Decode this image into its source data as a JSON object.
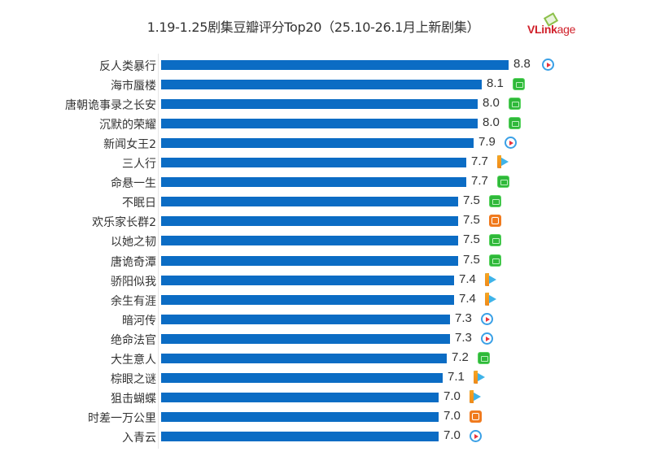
{
  "chart_data": {
    "type": "bar",
    "orientation": "horizontal",
    "title": "1.19-1.25剧集豆瓣评分Top20（25.10-26.1月上新剧集）",
    "xlabel": "",
    "ylabel": "",
    "grid": false,
    "legend": null,
    "categories": [
      "反人类暴行",
      "海市蜃楼",
      "唐朝诡事录之长安",
      "沉默的荣耀",
      "新闻女王2",
      "三人行",
      "命悬一生",
      "不眠日",
      "欢乐家长群2",
      "以她之韧",
      "唐诡奇潭",
      "骄阳似我",
      "余生有涯",
      "暗河传",
      "绝命法官",
      "大生意人",
      "棕眼之谜",
      "狙击蝴蝶",
      "时差一万公里",
      "入青云"
    ],
    "values": [
      8.8,
      8.1,
      8.0,
      8.0,
      7.9,
      7.7,
      7.7,
      7.5,
      7.5,
      7.5,
      7.5,
      7.4,
      7.4,
      7.3,
      7.3,
      7.2,
      7.1,
      7.0,
      7.0,
      7.0
    ],
    "platforms": [
      "youku",
      "iqiyi",
      "iqiyi",
      "iqiyi",
      "youku",
      "tencent",
      "iqiyi",
      "iqiyi",
      "mango",
      "iqiyi",
      "iqiyi",
      "tencent",
      "tencent",
      "youku",
      "youku",
      "iqiyi",
      "tencent",
      "tencent",
      "mango",
      "youku"
    ],
    "bar_color": "#0b6cc4"
  },
  "header": {
    "title": "1.19-1.25剧集豆瓣评分Top20（25.10-26.1月上新剧集）",
    "logo_bold": "VLink",
    "logo_light": "age"
  },
  "rows": [
    {
      "label": "反人类暴行",
      "value": "8.8",
      "platform_icon": "youku-icon"
    },
    {
      "label": "海市蜃楼",
      "value": "8.1",
      "platform_icon": "iqiyi-icon"
    },
    {
      "label": "唐朝诡事录之长安",
      "value": "8.0",
      "platform_icon": "iqiyi-icon"
    },
    {
      "label": "沉默的荣耀",
      "value": "8.0",
      "platform_icon": "iqiyi-icon"
    },
    {
      "label": "新闻女王2",
      "value": "7.9",
      "platform_icon": "youku-icon"
    },
    {
      "label": "三人行",
      "value": "7.7",
      "platform_icon": "tencent-video-icon"
    },
    {
      "label": "命悬一生",
      "value": "7.7",
      "platform_icon": "iqiyi-icon"
    },
    {
      "label": "不眠日",
      "value": "7.5",
      "platform_icon": "iqiyi-icon"
    },
    {
      "label": "欢乐家长群2",
      "value": "7.5",
      "platform_icon": "mango-tv-icon"
    },
    {
      "label": "以她之韧",
      "value": "7.5",
      "platform_icon": "iqiyi-icon"
    },
    {
      "label": "唐诡奇潭",
      "value": "7.5",
      "platform_icon": "iqiyi-icon"
    },
    {
      "label": "骄阳似我",
      "value": "7.4",
      "platform_icon": "tencent-video-icon"
    },
    {
      "label": "余生有涯",
      "value": "7.4",
      "platform_icon": "tencent-video-icon"
    },
    {
      "label": "暗河传",
      "value": "7.3",
      "platform_icon": "youku-icon"
    },
    {
      "label": "绝命法官",
      "value": "7.3",
      "platform_icon": "youku-icon"
    },
    {
      "label": "大生意人",
      "value": "7.2",
      "platform_icon": "iqiyi-icon"
    },
    {
      "label": "棕眼之谜",
      "value": "7.1",
      "platform_icon": "tencent-video-icon"
    },
    {
      "label": "狙击蝴蝶",
      "value": "7.0",
      "platform_icon": "tencent-video-icon"
    },
    {
      "label": "时差一万公里",
      "value": "7.0",
      "platform_icon": "mango-tv-icon"
    },
    {
      "label": "入青云",
      "value": "7.0",
      "platform_icon": "youku-icon"
    }
  ]
}
